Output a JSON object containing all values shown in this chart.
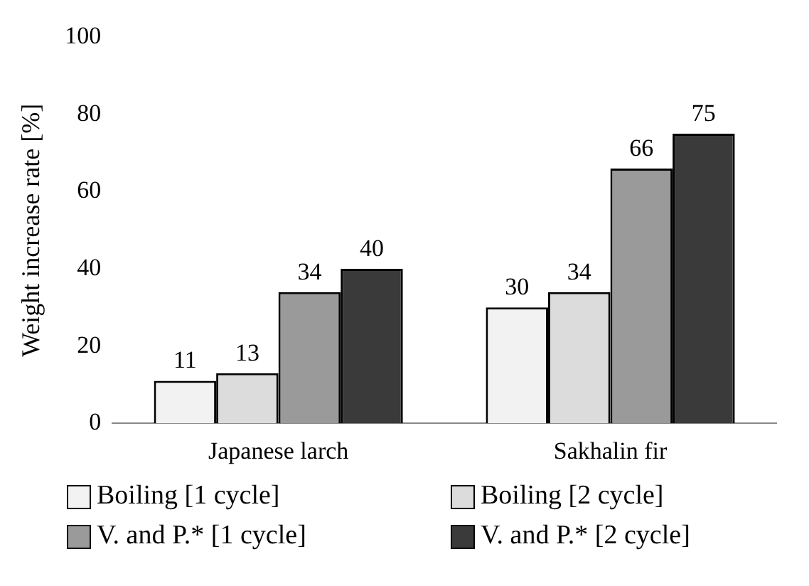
{
  "chart_data": {
    "type": "bar",
    "ylabel": "Weight increase rate [%]",
    "categories": [
      "Japanese larch",
      "Sakhalin fir"
    ],
    "series": [
      {
        "name": "Boiling [1 cycle]",
        "color": "#f2f2f2",
        "values": [
          11,
          30
        ]
      },
      {
        "name": "Boiling [2 cycle]",
        "color": "#dcdcdc",
        "values": [
          13,
          34
        ]
      },
      {
        "name": "V. and P.* [1 cycle]",
        "color": "#9a9a9a",
        "values": [
          34,
          66
        ]
      },
      {
        "name": "V. and P.* [2 cycle]",
        "color": "#3a3a3a",
        "values": [
          40,
          75
        ]
      }
    ],
    "ylim": [
      0,
      100
    ],
    "yticks": [
      0,
      20,
      40,
      60,
      80,
      100
    ],
    "grid": false,
    "legend": "bottom",
    "data_labels": true
  }
}
